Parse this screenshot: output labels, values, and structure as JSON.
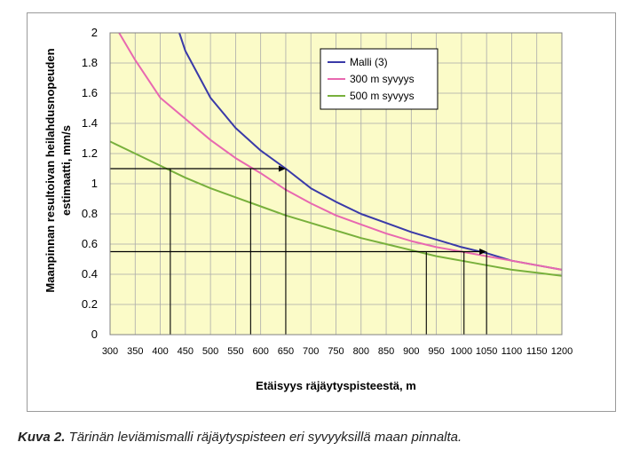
{
  "caption": {
    "label": "Kuva 2.",
    "text": " Tärinän leviämismalli räjäytyspisteen eri syvyyksillä maan pinnalta."
  },
  "chart_data": {
    "type": "line",
    "xlabel": "Etäisyys räjäytyspisteestä, m",
    "ylabel_line1": "Maanpinnan resultoivan heilahdusnopeuden",
    "ylabel_line2": "estimaatti, mm/s",
    "xlim": [
      300,
      1200
    ],
    "ylim": [
      0,
      2
    ],
    "x_ticks": [
      300,
      350,
      400,
      450,
      500,
      550,
      600,
      650,
      700,
      750,
      800,
      850,
      900,
      950,
      1000,
      1050,
      1100,
      1150,
      1200
    ],
    "y_ticks": [
      0,
      0.2,
      0.4,
      0.6,
      0.8,
      1,
      1.2,
      1.4,
      1.6,
      1.8,
      2
    ],
    "y_tick_labels": [
      "0",
      "0.2",
      "0.4",
      "0.6",
      "0.8",
      "1",
      "1.2",
      "1.4",
      "1.6",
      "1.8",
      "2"
    ],
    "grid": true,
    "plot_background": "#fbfbc8",
    "legend_position": "top-right",
    "series": [
      {
        "name": "Malli (3)",
        "color": "#3a3aa8",
        "x": [
          438,
          450,
          500,
          550,
          600,
          650,
          700,
          750,
          800,
          850,
          900,
          950,
          1000,
          1050,
          1100,
          1150,
          1200
        ],
        "y": [
          2.0,
          1.88,
          1.57,
          1.37,
          1.22,
          1.1,
          0.97,
          0.88,
          0.8,
          0.74,
          0.68,
          0.63,
          0.58,
          0.54,
          0.49,
          0.46,
          0.43
        ]
      },
      {
        "name": "300 m syvyys",
        "color": "#e868b0",
        "x": [
          318,
          350,
          400,
          450,
          500,
          550,
          600,
          650,
          700,
          750,
          800,
          850,
          900,
          950,
          1000,
          1050,
          1100,
          1150,
          1200
        ],
        "y": [
          2.0,
          1.82,
          1.57,
          1.43,
          1.29,
          1.17,
          1.07,
          0.96,
          0.87,
          0.79,
          0.73,
          0.67,
          0.62,
          0.58,
          0.55,
          0.52,
          0.49,
          0.46,
          0.43
        ]
      },
      {
        "name": "500 m syvyys",
        "color": "#78b03c",
        "x": [
          300,
          350,
          400,
          450,
          500,
          550,
          600,
          650,
          700,
          750,
          800,
          850,
          900,
          950,
          1000,
          1050,
          1100,
          1150,
          1200
        ],
        "y": [
          1.28,
          1.2,
          1.12,
          1.04,
          0.97,
          0.91,
          0.85,
          0.79,
          0.74,
          0.69,
          0.64,
          0.6,
          0.56,
          0.52,
          0.49,
          0.46,
          0.43,
          0.41,
          0.39
        ]
      }
    ],
    "annotations": [
      {
        "type": "threshold-arrow",
        "y": 1.1,
        "arrow_to_x": 650,
        "drop_lines_x": [
          420,
          580,
          650
        ]
      },
      {
        "type": "threshold-arrow",
        "y": 0.55,
        "arrow_to_x": 1050,
        "drop_lines_x": [
          930,
          1005,
          1050
        ]
      }
    ]
  }
}
